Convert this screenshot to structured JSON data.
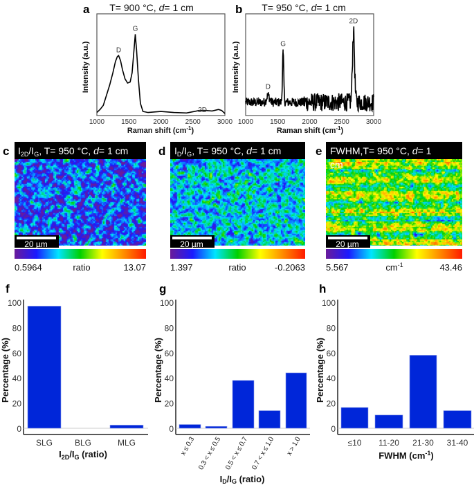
{
  "panels": {
    "a": {
      "letter": "a",
      "title_pre": "T= 900 °C, ",
      "title_d": "d",
      "title_post": "= 1 cm"
    },
    "b": {
      "letter": "b",
      "title_pre": "T= 950 °C, ",
      "title_d": "d",
      "title_post": "= 1 cm"
    },
    "c": {
      "letter": "c",
      "hdr_i": "I",
      "hdr_sub1": "2D",
      "hdr_slash": "/I",
      "hdr_sub2": "G",
      "hdr_rest": ", T= 950 °C, ",
      "hdr_d": "d",
      "hdr_post": "= 1 cm",
      "scale_bar": "20 µm",
      "cb_min": "0.5964",
      "cb_unit": "ratio",
      "cb_max": "13.07"
    },
    "d": {
      "letter": "d",
      "hdr_i": "I",
      "hdr_sub1": "D",
      "hdr_slash": "/I",
      "hdr_sub2": "G",
      "hdr_rest": ", T= 950 °C, ",
      "hdr_d": "d",
      "hdr_post": "= 1 cm",
      "scale_bar": "20 µm",
      "cb_min": "1.397",
      "cb_unit": "ratio",
      "cb_max": "-0.2063"
    },
    "e": {
      "letter": "e",
      "hdr_pre": "FWHM,T=  950 °C, ",
      "hdr_d": "d",
      "hdr_post": "= 1",
      "hdr_wrap": "cm",
      "scale_bar": "20 µm",
      "cb_min": "5.567",
      "cb_unit": "cm",
      "cb_unit_sup": "-1",
      "cb_max": "43.46"
    },
    "f": {
      "letter": "f"
    },
    "g": {
      "letter": "g"
    },
    "h": {
      "letter": "h"
    }
  },
  "colormap": [
    "#6a1b9a",
    "#1a1aff",
    "#00e5ff",
    "#00d000",
    "#ffff00",
    "#ff8c00",
    "#ff1a00"
  ],
  "bar_color": "#0026d9",
  "chart_data": [
    {
      "panel": "a",
      "type": "line",
      "title": "T= 900 °C, d= 1 cm",
      "xlabel": "Raman shift (cm-1)",
      "xlabel_main": "Raman shift (cm",
      "xlabel_sup": "-1",
      "xlabel_close": ")",
      "ylabel": "Intensity (a.u.)",
      "xlim": [
        1000,
        3000
      ],
      "xticks": [
        "1000",
        "1500",
        "2000",
        "2500",
        "3000"
      ],
      "annotations": [
        {
          "text": "D",
          "x": 1340
        },
        {
          "text": "G",
          "x": 1600
        },
        {
          "text": "2D",
          "x": 2650
        }
      ],
      "points": [
        [
          1000,
          0.03
        ],
        [
          1050,
          0.06
        ],
        [
          1100,
          0.1
        ],
        [
          1150,
          0.2
        ],
        [
          1200,
          0.3
        ],
        [
          1250,
          0.42
        ],
        [
          1290,
          0.53
        ],
        [
          1320,
          0.58
        ],
        [
          1340,
          0.59
        ],
        [
          1370,
          0.54
        ],
        [
          1400,
          0.45
        ],
        [
          1440,
          0.36
        ],
        [
          1480,
          0.32
        ],
        [
          1520,
          0.33
        ],
        [
          1550,
          0.42
        ],
        [
          1580,
          0.65
        ],
        [
          1600,
          0.8
        ],
        [
          1620,
          0.65
        ],
        [
          1650,
          0.35
        ],
        [
          1680,
          0.12
        ],
        [
          1720,
          0.04
        ],
        [
          1800,
          0.03
        ],
        [
          2000,
          0.04
        ],
        [
          2200,
          0.03
        ],
        [
          2400,
          0.025
        ],
        [
          2600,
          0.05
        ],
        [
          2700,
          0.05
        ],
        [
          2800,
          0.045
        ],
        [
          2900,
          0.06
        ],
        [
          2950,
          0.05
        ],
        [
          3000,
          0.02
        ]
      ]
    },
    {
      "panel": "b",
      "type": "line",
      "title": "T= 950 °C, d= 1 cm",
      "xlabel": "Raman shift (cm-1)",
      "xlabel_main": "Raman shift (cm",
      "xlabel_sup": "-1",
      "xlabel_close": ")",
      "ylabel": "Intensity (a.u.)",
      "xlim": [
        1000,
        3000
      ],
      "xticks": [
        "1000",
        "1500",
        "2000",
        "2500",
        "3000"
      ],
      "annotations": [
        {
          "text": "D",
          "x": 1350
        },
        {
          "text": "G",
          "x": 1585
        },
        {
          "text": "2D",
          "x": 2685
        }
      ],
      "baseline": 0.13,
      "peaks": [
        [
          1350,
          0.2
        ],
        [
          1585,
          0.62
        ],
        [
          2685,
          0.82
        ]
      ]
    },
    {
      "panel": "f",
      "type": "bar",
      "ylabel": "Percentage (%)",
      "xlabel_i": "I",
      "xlabel_sub1": "2D",
      "xlabel_slash": "/I",
      "xlabel_sub2": "G",
      "xlabel_rest": " (ratio)",
      "ylim": [
        0,
        100
      ],
      "yticks": [
        "0",
        "20",
        "40",
        "60",
        "80",
        "100"
      ],
      "categories": [
        "SLG",
        "BLG",
        "MLG"
      ],
      "values": [
        97,
        0,
        2.5
      ]
    },
    {
      "panel": "g",
      "type": "bar",
      "ylabel": "Percentage (%)",
      "xlabel_i": "I",
      "xlabel_sub1": "D",
      "xlabel_slash": "/I",
      "xlabel_sub2": "G",
      "xlabel_rest": " (ratio)",
      "ylim": [
        0,
        100
      ],
      "yticks": [
        "0",
        "20",
        "40",
        "60",
        "80",
        "100"
      ],
      "categories": [
        "x ≤ 0.3",
        "0.3 < x ≤ 0.5",
        "0.5 < x ≤ 0.7",
        "0.7 < x ≤ 1.0",
        "x > 1.0"
      ],
      "values": [
        3,
        1.5,
        38,
        14,
        44
      ]
    },
    {
      "panel": "h",
      "type": "bar",
      "ylabel": "Percentage (%)",
      "xlabel_main": "FWHM (cm",
      "xlabel_sup": "-1",
      "xlabel_close": ")",
      "ylim": [
        0,
        100
      ],
      "yticks": [
        "0",
        "20",
        "40",
        "60",
        "80",
        "100"
      ],
      "categories": [
        "≤10",
        "11-20",
        "21-30",
        "31-40"
      ],
      "values": [
        16.5,
        10.5,
        58,
        14
      ]
    }
  ]
}
